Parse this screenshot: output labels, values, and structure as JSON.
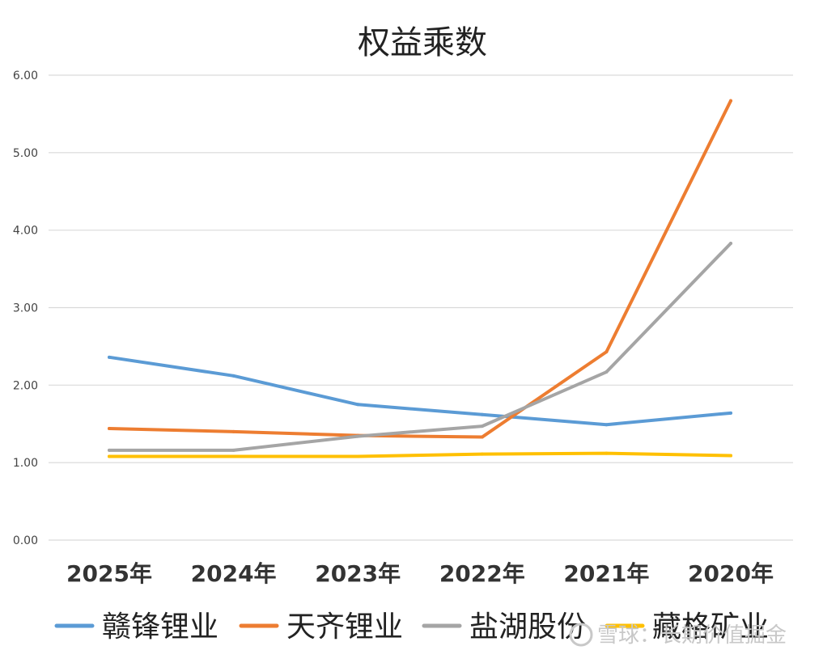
{
  "chart_data": {
    "type": "line",
    "title": "权益乘数",
    "categories": [
      "2025年",
      "2024年",
      "2023年",
      "2022年",
      "2021年",
      "2020年"
    ],
    "ylim": [
      0,
      6
    ],
    "yticks": [
      "0.00",
      "1.00",
      "2.00",
      "3.00",
      "4.00",
      "5.00",
      "6.00"
    ],
    "grid": true,
    "legend_position": "bottom",
    "series": [
      {
        "name": "赣锋锂业",
        "color": "#5B9BD5",
        "values": [
          2.36,
          2.12,
          1.75,
          1.62,
          1.49,
          1.64
        ]
      },
      {
        "name": "天齐锂业",
        "color": "#ED7D31",
        "values": [
          1.44,
          1.4,
          1.35,
          1.33,
          2.43,
          5.67
        ]
      },
      {
        "name": "盐湖股份",
        "color": "#A5A5A5",
        "values": [
          1.16,
          1.16,
          1.34,
          1.47,
          2.17,
          3.83
        ]
      },
      {
        "name": "藏格矿业",
        "color": "#FFC000",
        "values": [
          1.08,
          1.08,
          1.08,
          1.11,
          1.12,
          1.09
        ]
      }
    ]
  },
  "watermark": "雪球：长期价值掘金"
}
